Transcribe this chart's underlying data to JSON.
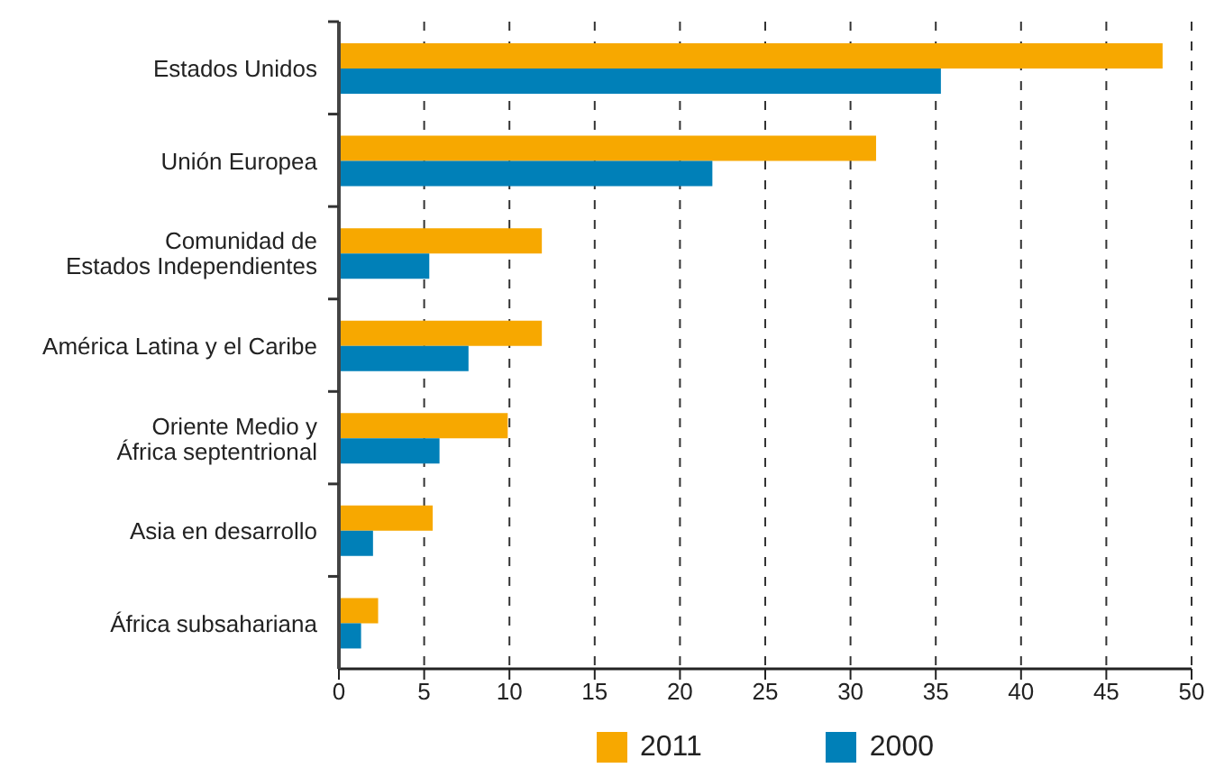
{
  "chart_data": {
    "type": "bar",
    "orientation": "horizontal",
    "categories": [
      "Estados Unidos",
      "Unión Europea",
      "Comunidad de\nEstados Independientes",
      "América Latina y el Caribe",
      "Oriente Medio y\nÁfrica septentrional",
      "Asia en desarrollo",
      "África subsahariana"
    ],
    "series": [
      {
        "name": "2011",
        "color": "#f7a800",
        "values": [
          48.3,
          31.5,
          11.9,
          11.9,
          9.9,
          5.5,
          2.3
        ]
      },
      {
        "name": "2000",
        "color": "#0080b8",
        "values": [
          35.3,
          21.9,
          5.3,
          7.6,
          5.9,
          2.0,
          1.3
        ]
      }
    ],
    "xlim": [
      0,
      50
    ],
    "xticks": [
      0,
      5,
      10,
      15,
      20,
      25,
      30,
      35,
      40,
      45,
      50
    ],
    "grid": "x",
    "legend": "bottom"
  }
}
